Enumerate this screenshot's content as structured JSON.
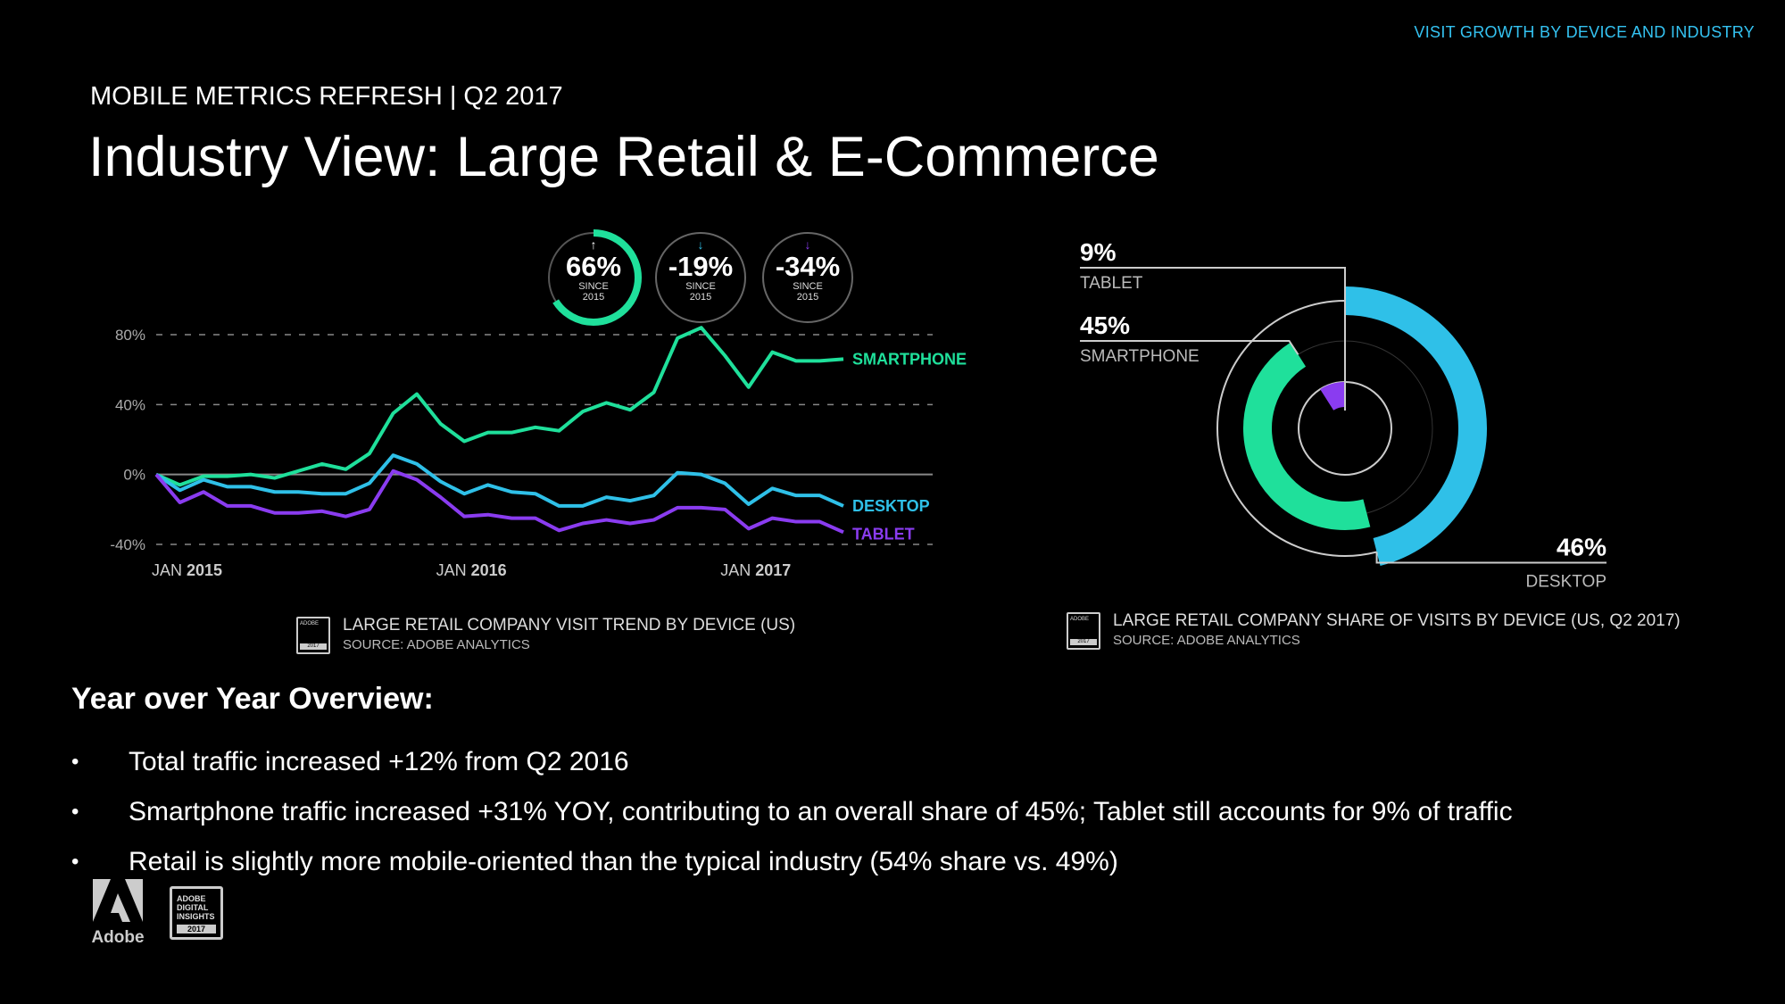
{
  "header": {
    "top_tag": "VISIT GROWTH BY DEVICE AND INDUSTRY",
    "kicker": "MOBILE METRICS REFRESH | Q2 2017",
    "title": "Industry View: Large Retail & E-Commerce"
  },
  "badges": [
    {
      "value": "66%",
      "sub1": "SINCE",
      "sub2": "2015",
      "arrow": "↑",
      "color": "#1fe09b"
    },
    {
      "value": "-19%",
      "sub1": "SINCE",
      "sub2": "2015",
      "arrow": "↓",
      "color": "#2fc0e8"
    },
    {
      "value": "-34%",
      "sub1": "SINCE",
      "sub2": "2015",
      "arrow": "↓",
      "color": "#8a3cf0"
    }
  ],
  "chart_data": [
    {
      "type": "line",
      "title": "",
      "x": [
        "2015-01",
        "2015-02",
        "2015-03",
        "2015-04",
        "2015-05",
        "2015-06",
        "2015-07",
        "2015-08",
        "2015-09",
        "2015-10",
        "2015-11",
        "2015-12",
        "2016-01",
        "2016-02",
        "2016-03",
        "2016-04",
        "2016-05",
        "2016-06",
        "2016-07",
        "2016-08",
        "2016-09",
        "2016-10",
        "2016-11",
        "2016-12",
        "2017-01",
        "2017-02",
        "2017-03",
        "2017-04",
        "2017-05",
        "2017-06"
      ],
      "x_ticks": [
        {
          "x": "2015-01",
          "prefix": "JAN",
          "year": "2015"
        },
        {
          "x": "2016-01",
          "prefix": "JAN",
          "year": "2016"
        },
        {
          "x": "2017-01",
          "prefix": "JAN",
          "year": "2017"
        }
      ],
      "yticks": [
        "80%",
        "40%",
        "0%",
        "-40%"
      ],
      "ylim": [
        -40,
        80
      ],
      "grid": true,
      "series": [
        {
          "name": "SMARTPHONE",
          "color": "#1fe09b",
          "values": [
            0,
            -6,
            -1,
            -1,
            0,
            -2,
            2,
            6,
            3,
            12,
            35,
            46,
            29,
            19,
            24,
            24,
            27,
            25,
            36,
            41,
            37,
            47,
            78,
            84,
            68,
            50,
            70,
            65,
            65,
            66
          ]
        },
        {
          "name": "DESKTOP",
          "color": "#2fc0e8",
          "values": [
            0,
            -9,
            -3,
            -7,
            -7,
            -10,
            -10,
            -11,
            -11,
            -5,
            11,
            6,
            -4,
            -11,
            -6,
            -10,
            -11,
            -18,
            -18,
            -13,
            -15,
            -12,
            1,
            0,
            -5,
            -17,
            -8,
            -12,
            -12,
            -18
          ]
        },
        {
          "name": "TABLET",
          "color": "#8a3cf0",
          "values": [
            0,
            -16,
            -10,
            -18,
            -18,
            -22,
            -22,
            -21,
            -24,
            -20,
            2,
            -3,
            -13,
            -24,
            -23,
            -25,
            -25,
            -32,
            -28,
            -26,
            -28,
            -26,
            -19,
            -19,
            -20,
            -31,
            -25,
            -27,
            -27,
            -33
          ]
        }
      ],
      "source_title": "LARGE RETAIL COMPANY VISIT TREND BY DEVICE (US)",
      "source": "SOURCE: ADOBE ANALYTICS"
    },
    {
      "type": "pie",
      "title": "",
      "slices": [
        {
          "label": "TABLET",
          "value": 9,
          "display": "9%",
          "color": "#8a3cf0"
        },
        {
          "label": "SMARTPHONE",
          "value": 45,
          "display": "45%",
          "color": "#1fe09b"
        },
        {
          "label": "DESKTOP",
          "value": 46,
          "display": "46%",
          "color": "#2fc0e8"
        }
      ],
      "source_title": "LARGE RETAIL COMPANY SHARE OF VISITS BY DEVICE (US, Q2 2017)",
      "source": "SOURCE: ADOBE ANALYTICS"
    }
  ],
  "overview": {
    "title": "Year over Year Overview:",
    "bullet_char": "•",
    "items": [
      "Total traffic increased +12% from Q2 2016",
      "Smartphone traffic increased +31% YOY, contributing to an overall share of 45%; Tablet still accounts for 9% of traffic",
      "Retail is slightly more mobile-oriented than the typical industry (54% share vs. 49%)"
    ]
  },
  "logos": {
    "adobe_label": "Adobe",
    "adi_line1": "ADOBE",
    "adi_line2": "DIGITAL",
    "adi_line3": "INSIGHTS",
    "adi_year": "2017"
  },
  "colors": {
    "accent": "#34c3f2",
    "smartphone": "#1fe09b",
    "desktop": "#2fc0e8",
    "tablet": "#8a3cf0"
  }
}
